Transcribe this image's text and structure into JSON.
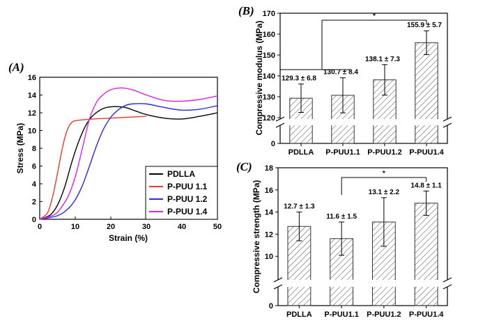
{
  "chart_data": [
    {
      "panel": "(A)",
      "type": "line",
      "xlabel": "Strain (%)",
      "ylabel": "Stress (MPa)",
      "xlim": [
        0,
        50
      ],
      "ylim": [
        0,
        16
      ],
      "xticks": [
        "0",
        "10",
        "20",
        "30",
        "40",
        "50"
      ],
      "yticks": [
        "0",
        "2",
        "4",
        "6",
        "8",
        "10",
        "12",
        "14",
        "16"
      ],
      "legend_position": "bottom-right",
      "series": [
        {
          "name": "PDLLA",
          "color": "#000000",
          "x": [
            0,
            3,
            5,
            7,
            9,
            11,
            13,
            15,
            18,
            21,
            24,
            27,
            30,
            35,
            40,
            45,
            50
          ],
          "y": [
            0,
            0.5,
            1.6,
            3.6,
            6.4,
            8.8,
            10.6,
            11.7,
            12.5,
            12.7,
            12.6,
            12.2,
            11.8,
            11.4,
            11.3,
            11.6,
            12.0
          ]
        },
        {
          "name": "P-PUU 1.1",
          "color": "#e8392b",
          "x": [
            0,
            2,
            3,
            4,
            5,
            6,
            7,
            8,
            9,
            10,
            12,
            15,
            20,
            25,
            30
          ],
          "y": [
            0,
            0.6,
            1.6,
            3.2,
            5.2,
            7.3,
            9.1,
            10.3,
            10.9,
            11.1,
            11.2,
            11.3,
            11.4,
            11.5,
            11.6
          ]
        },
        {
          "name": "P-PUU 1.2",
          "color": "#2a2adb",
          "x": [
            0,
            5,
            8,
            10,
            12,
            14,
            16,
            18,
            20,
            22,
            24,
            26,
            30,
            35,
            40,
            45,
            50
          ],
          "y": [
            0,
            0.4,
            1.2,
            2.2,
            3.8,
            6.0,
            8.3,
            10.2,
            11.5,
            12.3,
            12.8,
            13.0,
            13.0,
            12.6,
            12.3,
            12.4,
            12.8
          ]
        },
        {
          "name": "P-PUU 1.4",
          "color": "#e020e0",
          "x": [
            0,
            4,
            6,
            8,
            10,
            12,
            14,
            16,
            18,
            20,
            23,
            26,
            30,
            35,
            40,
            45,
            50
          ],
          "y": [
            0,
            0.5,
            1.3,
            2.6,
            4.8,
            8.0,
            11.3,
            13.2,
            14.1,
            14.6,
            14.8,
            14.6,
            14.0,
            13.4,
            13.3,
            13.5,
            13.9
          ]
        }
      ]
    },
    {
      "panel": "(B)",
      "type": "bar",
      "ylabel": "Compressive modulus (MPa)",
      "ylim": [
        120,
        170
      ],
      "axis_break": true,
      "yticks": [
        "0",
        "120",
        "130",
        "140",
        "150",
        "160",
        "170"
      ],
      "categories": [
        "PDLLA",
        "P-PUU1.1",
        "P-PUU1.2",
        "P-PUU1.4"
      ],
      "values": [
        129.3,
        130.7,
        138.1,
        155.9
      ],
      "errors": [
        6.8,
        8.4,
        7.3,
        5.7
      ],
      "data_labels": [
        "129.3 ± 6.8",
        "130.7 ± 8.4",
        "138.1 ± 7.3",
        "155.9 ± 5.7"
      ],
      "significance": {
        "label": "*",
        "groups": [
          "PDLLA",
          "P-PUU1.1"
        ],
        "vs": "P-PUU1.4"
      }
    },
    {
      "panel": "(C)",
      "type": "bar",
      "ylabel": "Compressive strength (MPa)",
      "ylim": [
        8,
        18
      ],
      "axis_break": true,
      "yticks": [
        "0",
        "10",
        "12",
        "14",
        "16",
        "18"
      ],
      "categories": [
        "PDLLA",
        "P-PUU1.1",
        "P-PUU1.2",
        "P-PUU1.4"
      ],
      "values": [
        12.7,
        11.6,
        13.1,
        14.8
      ],
      "errors": [
        1.3,
        1.5,
        2.2,
        1.1
      ],
      "data_labels": [
        "12.7 ± 1.3",
        "11.6 ± 1.5",
        "13.1 ± 2.2",
        "14.8 ± 1.1"
      ],
      "significance": {
        "label": "*",
        "groups": [
          "P-PUU1.1"
        ],
        "vs": "P-PUU1.4"
      }
    }
  ]
}
